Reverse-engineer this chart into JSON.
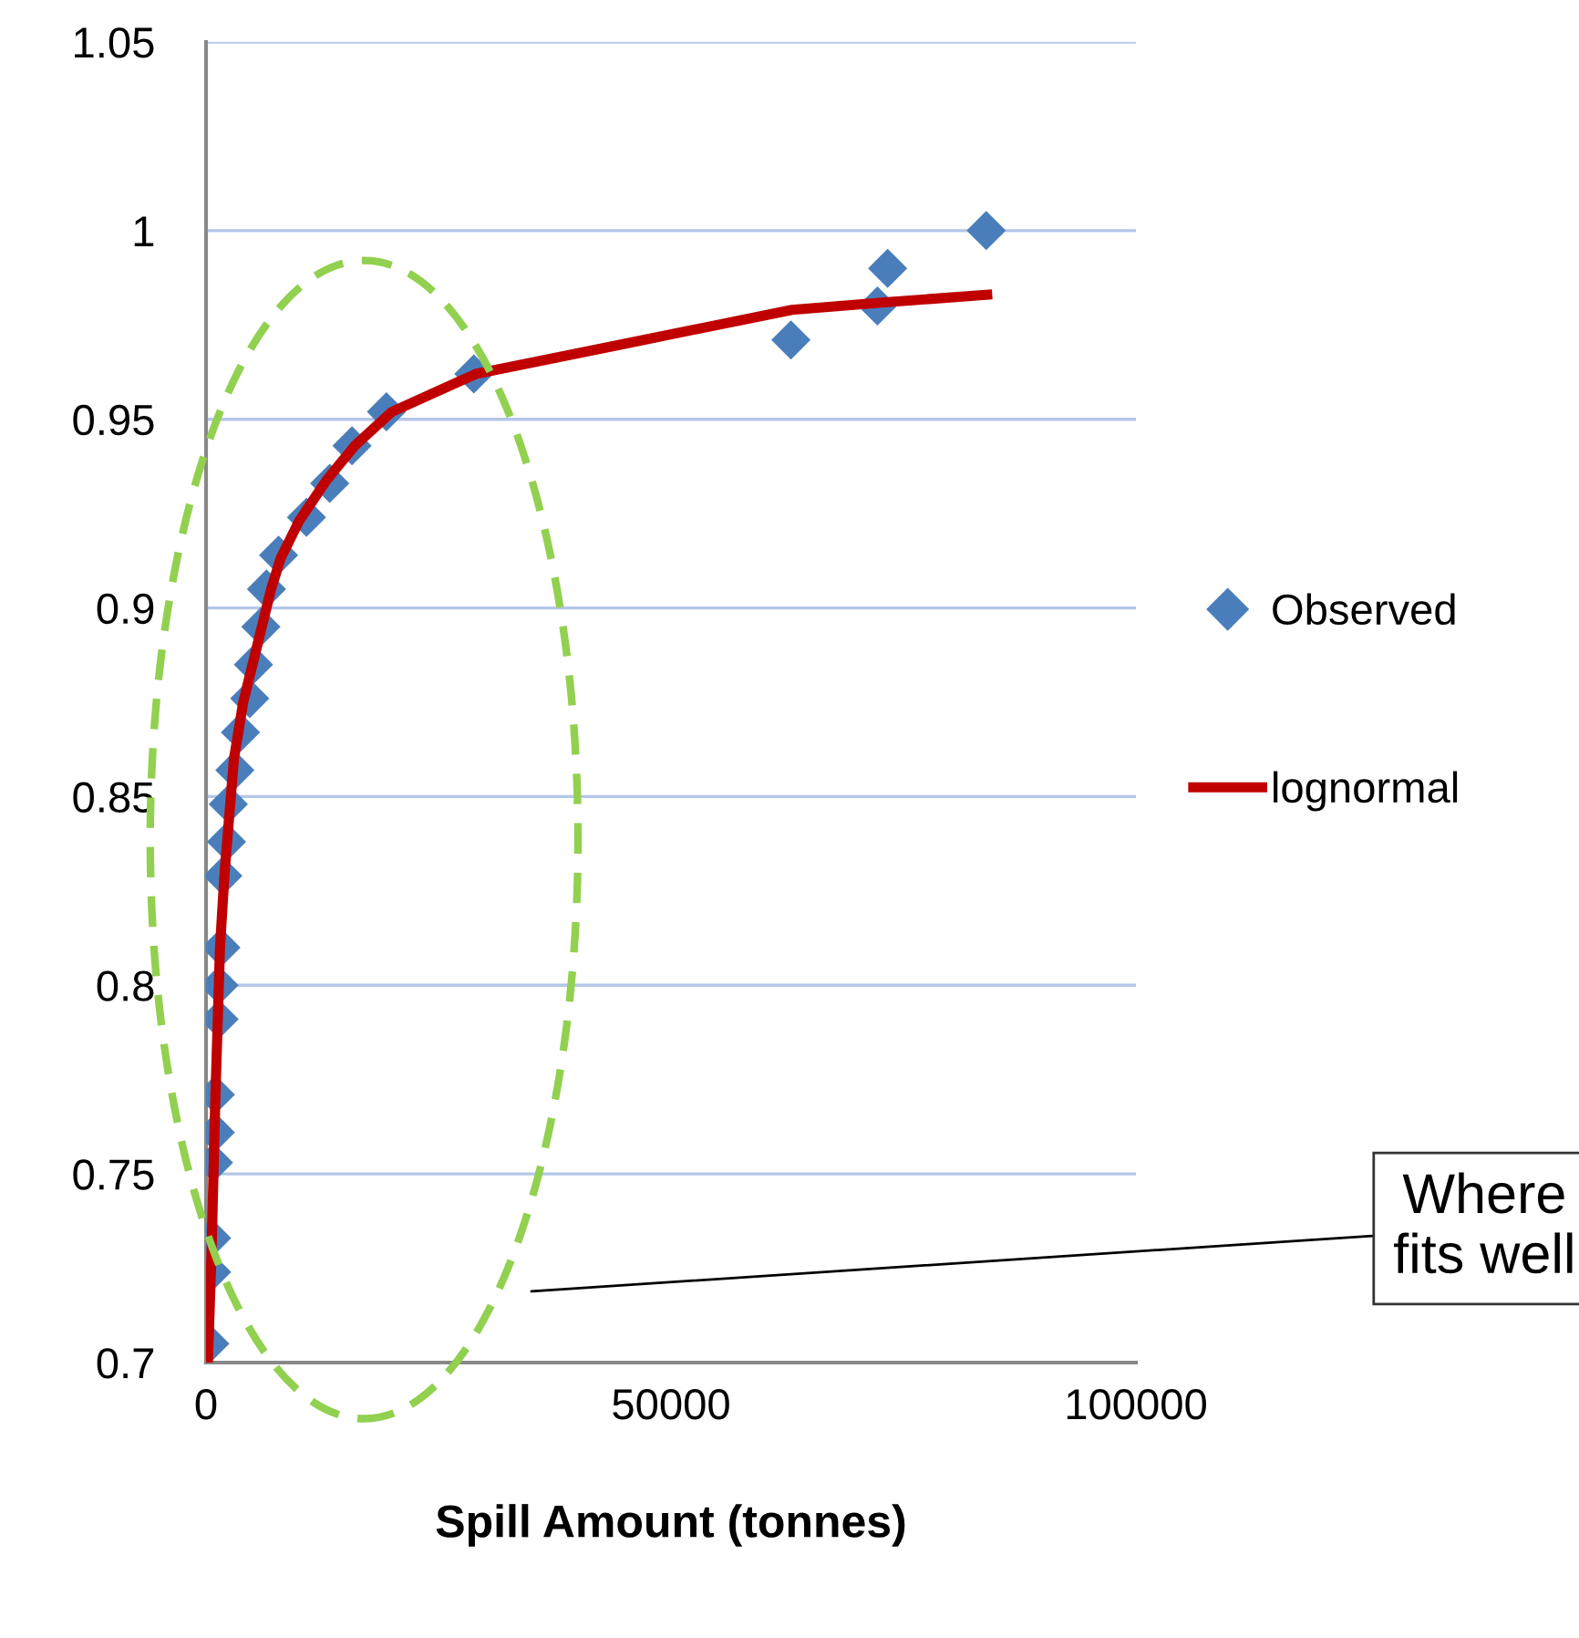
{
  "chart_data": {
    "type": "scatter",
    "xlabel": "Spill Amount (tonnes)",
    "xlim": [
      0,
      100000
    ],
    "ylim": [
      0.7,
      1.05
    ],
    "xticks": [
      0,
      50000,
      100000
    ],
    "yticks": [
      0.7,
      0.75,
      0.8,
      0.85,
      0.9,
      0.95,
      1,
      1.05
    ],
    "grid": "y",
    "legend": "right",
    "series": [
      {
        "name": "Observed",
        "marker": "diamond",
        "color": "#4a7ebb",
        "x": [
          400,
          600,
          600,
          800,
          1000,
          1000,
          1400,
          1400,
          1600,
          1800,
          2200,
          2400,
          3100,
          3700,
          4700,
          5100,
          5900,
          6500,
          7800,
          10800,
          13300,
          15700,
          19400,
          28800,
          62900,
          72200,
          73300,
          83900
        ],
        "values": [
          0.705,
          0.724,
          0.733,
          0.753,
          0.761,
          0.771,
          0.791,
          0.8,
          0.81,
          0.829,
          0.838,
          0.848,
          0.857,
          0.867,
          0.876,
          0.885,
          0.895,
          0.905,
          0.914,
          0.924,
          0.933,
          0.943,
          0.952,
          0.962,
          0.971,
          0.98,
          0.99,
          1.0
        ]
      },
      {
        "name": "lognormal",
        "type": "line",
        "marker": "none",
        "line_style": "solid",
        "color": "#c00000",
        "x": [
          200,
          600,
          1000,
          1500,
          2000,
          2500,
          3000,
          4000,
          5000,
          6000,
          7000,
          8000,
          10000,
          13000,
          16000,
          20000,
          29000,
          45000,
          63000,
          73000,
          84000
        ],
        "values": [
          0.7,
          0.73,
          0.77,
          0.81,
          0.83,
          0.845,
          0.86,
          0.875,
          0.885,
          0.895,
          0.905,
          0.913,
          0.923,
          0.934,
          0.943,
          0.952,
          0.962,
          0.97,
          0.979,
          0.981,
          0.983
        ]
      }
    ],
    "annotations": [
      "Where\nfits well"
    ]
  }
}
